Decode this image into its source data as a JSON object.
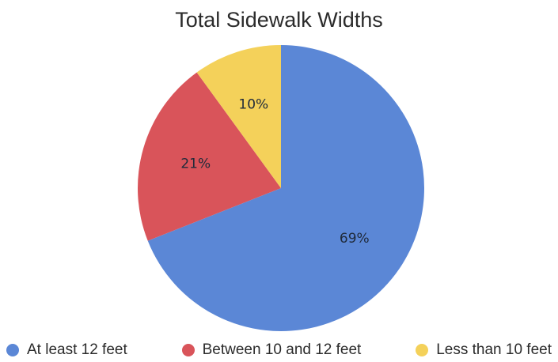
{
  "chart_data": {
    "type": "pie",
    "title": "Total Sidewalk Widths",
    "slices": [
      {
        "label": "At least 12 feet",
        "value": 69,
        "value_label": "69%",
        "color": "#5b87d6"
      },
      {
        "label": "Between 10 and 12 feet",
        "value": 21,
        "value_label": "21%",
        "color": "#d9545a"
      },
      {
        "label": "Less than 10 feet",
        "value": 10,
        "value_label": "10%",
        "color": "#f4d15a"
      }
    ],
    "start_angle": "12 o'clock",
    "direction": "clockwise",
    "legend_position": "bottom"
  }
}
